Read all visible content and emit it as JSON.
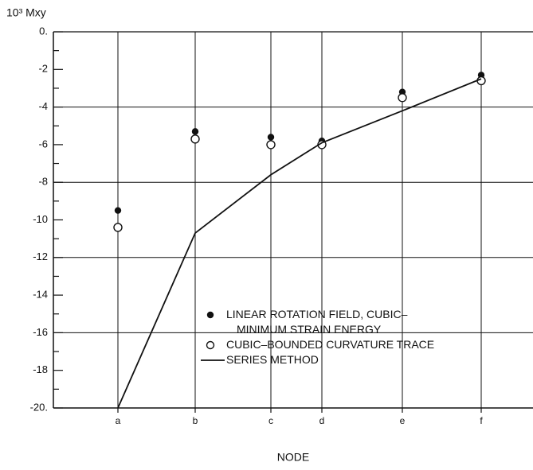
{
  "chart_data": {
    "type": "scatter-line",
    "y_label": "10³ Mxy",
    "x_label": "NODE",
    "categories": [
      "a",
      "b",
      "c",
      "d",
      "e",
      "f"
    ],
    "series": [
      {
        "name": "LINEAR ROTATION FIELD, CUBIC–MINIMUM STRAIN ENERGY",
        "marker": "filled",
        "color": "#111111",
        "values": [
          -9.5,
          -5.3,
          -5.6,
          -5.8,
          -3.2,
          -2.3
        ]
      },
      {
        "name": "CUBIC–BOUNDED CURVATURE TRACE",
        "marker": "open",
        "color": "#111111",
        "values": [
          -10.4,
          -5.7,
          -6.0,
          -6.0,
          -3.5,
          -2.6
        ]
      },
      {
        "name": "SERIES METHOD",
        "marker": "line",
        "color": "#111111",
        "values": [
          -20,
          -10.7,
          -7.6,
          -5.9,
          -4.2,
          -2.5
        ]
      }
    ],
    "ylim": [
      -20,
      0
    ],
    "yticks": [
      {
        "value": 0,
        "label": "0."
      },
      -2,
      -4,
      -6,
      -8,
      -10,
      -12,
      -14,
      -16,
      -18,
      {
        "value": -20,
        "label": "-20."
      }
    ],
    "ygrid": [
      -4,
      -8,
      -12,
      -16
    ],
    "grid": true
  }
}
